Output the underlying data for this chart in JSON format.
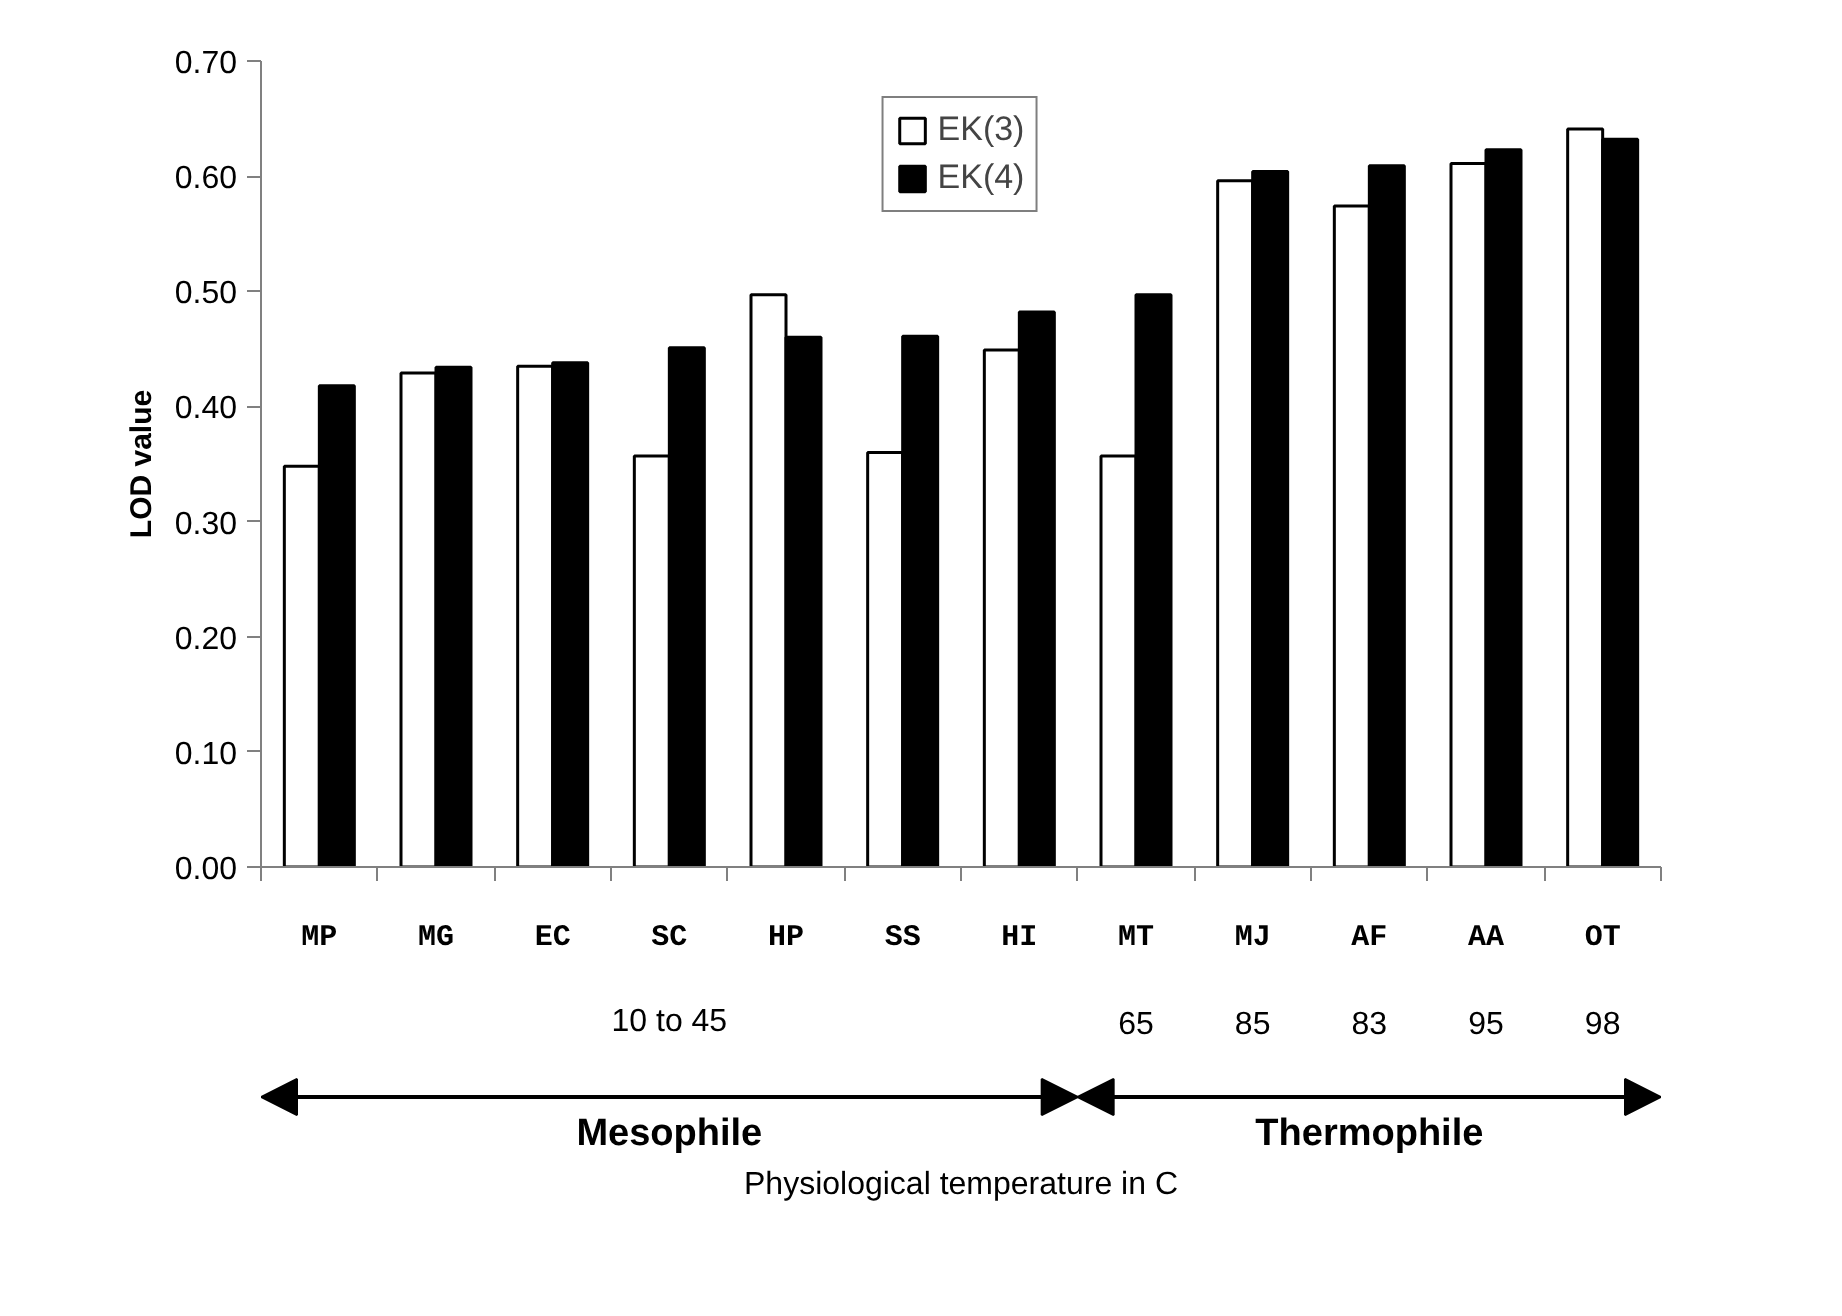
{
  "chart_data": {
    "type": "bar",
    "ylabel": "LOD value",
    "categories": [
      "MP",
      "MG",
      "EC",
      "SC",
      "HP",
      "SS",
      "HI",
      "MT",
      "MJ",
      "AF",
      "AA",
      "OT"
    ],
    "series": [
      {
        "name": "EK(3)",
        "color": "#ffffff",
        "values": [
          0.348,
          0.429,
          0.435,
          0.357,
          0.497,
          0.36,
          0.449,
          0.357,
          0.596,
          0.574,
          0.611,
          0.641
        ]
      },
      {
        "name": "EK(4)",
        "color": "#000000",
        "values": [
          0.418,
          0.434,
          0.438,
          0.451,
          0.46,
          0.461,
          0.482,
          0.497,
          0.604,
          0.609,
          0.623,
          0.632
        ]
      }
    ],
    "ylim": [
      0,
      0.7
    ],
    "yticks": [
      {
        "value": 0,
        "label": "0.00"
      },
      {
        "value": 0.1,
        "label": "0.10"
      },
      {
        "value": 0.2,
        "label": "0.20"
      },
      {
        "value": 0.3,
        "label": "0.30"
      },
      {
        "value": 0.4,
        "label": "0.40"
      },
      {
        "value": 0.5,
        "label": "0.50"
      },
      {
        "value": 0.6,
        "label": "0.60"
      },
      {
        "value": 0.7,
        "label": "0.70"
      }
    ],
    "grid": false,
    "legend": "top",
    "annotations": [
      "10 to 45",
      "65",
      "85",
      "83",
      "95",
      "98",
      "Mesophile",
      "Thermophile",
      "Physiological temperature in C"
    ]
  }
}
